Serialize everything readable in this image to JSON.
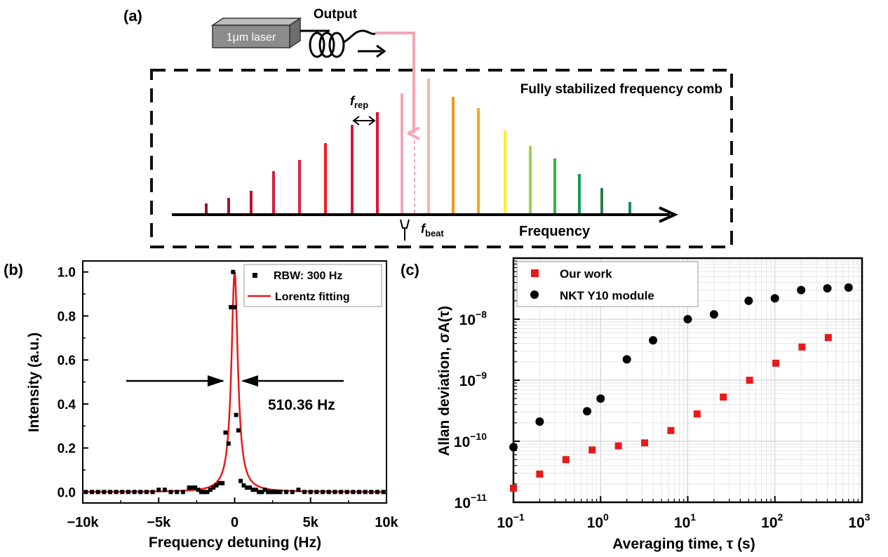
{
  "panel_a": {
    "label": "(a)",
    "laser_label": "1μm laser",
    "output_label": "Output",
    "comb_title": "Fully stabilized frequency comb",
    "frep_main": "f",
    "frep_sub": "rep",
    "fbeat_main": "f",
    "fbeat_sub": "beat",
    "axis_label": "Frequency",
    "colors": {
      "beat_arrow": "#f4a6b6",
      "box": "#111111"
    }
  },
  "panel_b": {
    "label": "(b)",
    "annotation": "510.36 Hz"
  },
  "panel_c": {
    "label": "(c)"
  },
  "chart_data": [
    {
      "type": "scatter",
      "xlabel": "Frequency detuning (Hz)",
      "ylabel": "Intensity (a.u.)",
      "xlim": [
        -10000,
        10000
      ],
      "ylim": [
        -0.05,
        1.05
      ],
      "x_ticks": [
        -10000,
        -5000,
        0,
        5000,
        10000
      ],
      "x_tick_labels": [
        "−10k",
        "−5k",
        "0",
        "5k",
        "10k"
      ],
      "y_ticks": [
        0.0,
        0.2,
        0.4,
        0.6,
        0.8,
        1.0
      ],
      "y_tick_labels": [
        "0.0",
        "0.2",
        "0.4",
        "0.6",
        "0.8",
        "1.0"
      ],
      "legend": "top-right",
      "linewidth_hz": 510.36,
      "series": [
        {
          "name": "RBW: 300 Hz",
          "marker": "square",
          "color": "#000000",
          "x": [
            -9800,
            -9400,
            -9000,
            -8600,
            -8200,
            -7800,
            -7400,
            -7000,
            -6600,
            -6200,
            -5800,
            -5400,
            -5000,
            -4600,
            -4200,
            -3800,
            -3400,
            -3000,
            -2800,
            -2600,
            -2400,
            -2200,
            -2000,
            -1800,
            -1600,
            -1400,
            -1200,
            -1000,
            -800,
            -600,
            -400,
            -250,
            -100,
            0,
            100,
            250,
            400,
            600,
            800,
            1000,
            1200,
            1400,
            1600,
            1800,
            2000,
            2200,
            2400,
            2600,
            2800,
            3000,
            3400,
            3800,
            4200,
            4600,
            5000,
            5400,
            5800,
            6200,
            6600,
            7000,
            7400,
            7800,
            8200,
            8600,
            9000,
            9400,
            9800
          ],
          "y": [
            0.0,
            0.0,
            0.0,
            0.0,
            0.0,
            0.0,
            0.0,
            0.0,
            0.0,
            0.0,
            0.0,
            0.0,
            0.01,
            0.01,
            0.0,
            0.0,
            0.0,
            0.02,
            0.02,
            0.02,
            0.01,
            0.0,
            0.0,
            0.0,
            0.01,
            0.02,
            0.03,
            0.04,
            0.04,
            0.27,
            0.22,
            0.84,
            1.0,
            0.84,
            0.35,
            0.28,
            0.05,
            0.03,
            0.02,
            0.02,
            0.01,
            0.01,
            0.0,
            0.0,
            0.01,
            0.0,
            0.0,
            0.0,
            0.0,
            0.0,
            0.0,
            0.0,
            0.01,
            0.0,
            0.0,
            0.0,
            0.0,
            0.0,
            0.0,
            0.0,
            0.0,
            0.0,
            0.0,
            0.0,
            0.0,
            0.0,
            0.0
          ]
        },
        {
          "name": "Lorentz  fitting",
          "line": true,
          "color": "#e8191a",
          "center": 0,
          "fwhm": 510.36,
          "amplitude": 1.0,
          "offset": 0.0
        }
      ]
    },
    {
      "type": "scatter",
      "xlabel": "Averaging time, τ (s)",
      "ylabel": "Allan deviation, σA(τ)",
      "x_scale": "log",
      "y_scale": "log",
      "xlim": [
        0.1,
        1000
      ],
      "ylim": [
        1e-11,
        1e-07
      ],
      "x_ticks": [
        0.1,
        1,
        10,
        100,
        1000
      ],
      "x_tick_base": [
        "10",
        "10",
        "10",
        "10",
        "10"
      ],
      "x_tick_exp": [
        "−1",
        "0",
        "1",
        "2",
        "3"
      ],
      "y_ticks": [
        1e-11,
        1e-10,
        1e-09,
        1e-08
      ],
      "y_tick_base": [
        "10",
        "10",
        "10",
        "10"
      ],
      "y_tick_exp": [
        "−11",
        "−10",
        "−9",
        "−8"
      ],
      "grid": true,
      "legend": "top-left",
      "series": [
        {
          "name": "Our work",
          "marker": "square",
          "color": "#e8191a",
          "x": [
            0.1,
            0.2,
            0.4,
            0.8,
            1.6,
            3.2,
            6.4,
            12.8,
            25.6,
            51.2,
            102.4,
            204.8,
            409.6
          ],
          "y": [
            1.7e-11,
            2.9e-11,
            5e-11,
            7.2e-11,
            8.4e-11,
            9.4e-11,
            1.5e-10,
            2.8e-10,
            5.3e-10,
            1e-09,
            1.9e-09,
            3.5e-09,
            5e-09
          ]
        },
        {
          "name": "NKT Y10 module",
          "marker": "circle",
          "color": "#000000",
          "x": [
            0.1,
            0.2,
            0.7,
            1.0,
            2.0,
            4.0,
            10,
            20,
            50,
            100,
            200,
            400,
            700
          ],
          "y": [
            8e-11,
            2.1e-10,
            3.1e-10,
            5e-10,
            2.2e-09,
            4.5e-09,
            1e-08,
            1.2e-08,
            2e-08,
            2.2e-08,
            3e-08,
            3.2e-08,
            3.3e-08
          ]
        }
      ]
    }
  ]
}
